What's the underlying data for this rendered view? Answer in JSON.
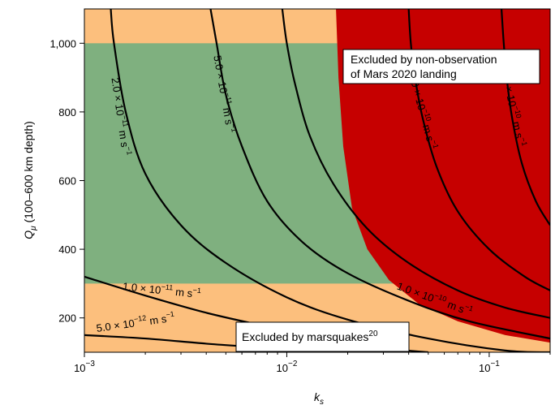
{
  "chart_data": {
    "type": "contour",
    "xlabel_main": "k",
    "xlabel_sub": "s",
    "ylabel_main": "Q",
    "ylabel_sub": "μ",
    "ylabel_rest": " (100–600 km depth)",
    "x_scale": "log",
    "xlim": [
      0.001,
      0.2
    ],
    "ylim": [
      100,
      1100
    ],
    "x_ticks": [
      {
        "value": 0.001,
        "base": "10",
        "exp": "−3"
      },
      {
        "value": 0.01,
        "base": "10",
        "exp": "−2"
      },
      {
        "value": 0.1,
        "base": "10",
        "exp": "−1"
      }
    ],
    "y_ticks": [
      {
        "value": 200,
        "label": "200"
      },
      {
        "value": 400,
        "label": "400"
      },
      {
        "value": 600,
        "label": "600"
      },
      {
        "value": 800,
        "label": "800"
      },
      {
        "value": 1000,
        "label": "1,000"
      }
    ],
    "regions": {
      "excluded_marsquakes": {
        "color": "#fcbf7d",
        "description": "Q_mu outside 300–1000"
      },
      "allowed": {
        "color": "#7fb07f",
        "q_range": [
          300,
          1000
        ]
      },
      "excluded_landing": {
        "color": "#c60000"
      }
    },
    "landing_boundary": {
      "points": [
        [
          0.0175,
          1100
        ],
        [
          0.018,
          900
        ],
        [
          0.019,
          700
        ],
        [
          0.021,
          520
        ],
        [
          0.025,
          400
        ],
        [
          0.032,
          310
        ],
        [
          0.045,
          240
        ],
        [
          0.07,
          190
        ],
        [
          0.12,
          150
        ],
        [
          0.2,
          128
        ]
      ]
    },
    "contours": [
      {
        "label": "5.0 × 10^−12 m s^−1",
        "points": [
          [
            0.001,
            150
          ],
          [
            0.002,
            140
          ],
          [
            0.004,
            125
          ],
          [
            0.008,
            112
          ],
          [
            0.012,
            100
          ]
        ]
      },
      {
        "label": "1.0 × 10^−11 m s^−1",
        "points": [
          [
            0.001,
            320
          ],
          [
            0.002,
            265
          ],
          [
            0.004,
            215
          ],
          [
            0.008,
            175
          ],
          [
            0.016,
            140
          ],
          [
            0.03,
            112
          ],
          [
            0.05,
            100
          ]
        ]
      },
      {
        "label": "2.0 × 10^−11 m s^−1",
        "points": [
          [
            0.00135,
            1100
          ],
          [
            0.0014,
            1000
          ],
          [
            0.0016,
            800
          ],
          [
            0.002,
            620
          ],
          [
            0.003,
            470
          ],
          [
            0.005,
            360
          ],
          [
            0.01,
            260
          ],
          [
            0.02,
            195
          ],
          [
            0.05,
            140
          ],
          [
            0.12,
            105
          ],
          [
            0.2,
            100
          ]
        ]
      },
      {
        "label": "5.0 × 10^−11 m s^−1",
        "points": [
          [
            0.0042,
            1100
          ],
          [
            0.0045,
            1000
          ],
          [
            0.005,
            850
          ],
          [
            0.006,
            700
          ],
          [
            0.008,
            540
          ],
          [
            0.012,
            420
          ],
          [
            0.02,
            330
          ],
          [
            0.04,
            250
          ],
          [
            0.08,
            190
          ],
          [
            0.2,
            140
          ]
        ]
      },
      {
        "label": "1.0 × 10^−10 m s^−1",
        "points": [
          [
            0.0095,
            1100
          ],
          [
            0.01,
            1000
          ],
          [
            0.011,
            880
          ],
          [
            0.013,
            730
          ],
          [
            0.017,
            590
          ],
          [
            0.025,
            460
          ],
          [
            0.04,
            360
          ],
          [
            0.07,
            280
          ],
          [
            0.12,
            230
          ],
          [
            0.2,
            200
          ]
        ]
      },
      {
        "label": "2.0 × 10^−10 m s^−1",
        "points": [
          [
            0.04,
            1100
          ],
          [
            0.041,
            1000
          ],
          [
            0.043,
            900
          ],
          [
            0.047,
            780
          ],
          [
            0.055,
            640
          ],
          [
            0.07,
            510
          ],
          [
            0.1,
            400
          ],
          [
            0.15,
            320
          ],
          [
            0.2,
            280
          ]
        ]
      },
      {
        "label": "5.0 × 10^−10 m s^−1",
        "points": [
          [
            0.115,
            1100
          ],
          [
            0.118,
            1000
          ],
          [
            0.122,
            900
          ],
          [
            0.13,
            780
          ],
          [
            0.145,
            650
          ],
          [
            0.17,
            540
          ],
          [
            0.2,
            470
          ]
        ]
      }
    ],
    "contour_labels": [
      {
        "mant": "5.0",
        "exp": "−12",
        "unit_exp": "−1",
        "x": 0.0018,
        "y": 175,
        "angle": -8
      },
      {
        "mant": "1.0",
        "exp": "−11",
        "unit_exp": "−1",
        "x": 0.0024,
        "y": 270,
        "angle": 6
      },
      {
        "mant": "2.0",
        "exp": "−11",
        "unit_exp": "−1",
        "x": 0.00145,
        "y": 785,
        "angle": 82
      },
      {
        "mant": "5.0",
        "exp": "−11",
        "unit_exp": "−1",
        "x": 0.0047,
        "y": 850,
        "angle": 80
      },
      {
        "mant": "1.0",
        "exp": "−10",
        "unit_exp": "−1",
        "x": 0.053,
        "y": 245,
        "angle": 20
      },
      {
        "mant": "2.0",
        "exp": "−10",
        "unit_exp": "−1",
        "x": 0.045,
        "y": 800,
        "angle": 75
      },
      {
        "mant": "5.0",
        "exp": "−10",
        "unit_exp": "−1",
        "x": 0.126,
        "y": 810,
        "angle": 78
      }
    ],
    "annotations": {
      "landing_box": {
        "line1": "Excluded by non-observation",
        "line2": "of Mars 2020 landing"
      },
      "marsquake_box": {
        "text": "Excluded by marsquakes",
        "ref": "20"
      }
    }
  }
}
